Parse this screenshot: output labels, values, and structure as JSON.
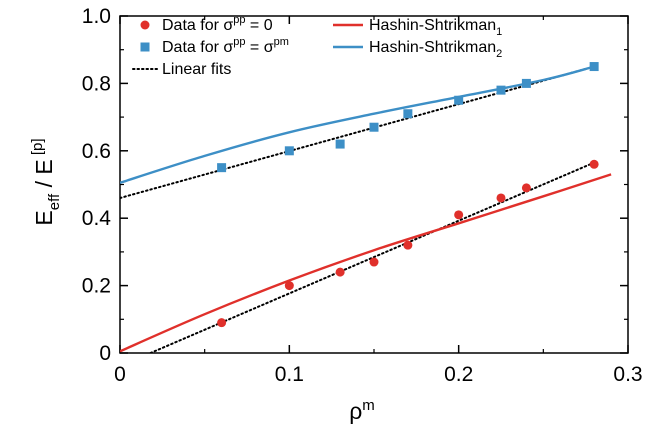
{
  "chart_data": {
    "type": "scatter",
    "title": "",
    "xlabel": "ρ^m",
    "ylabel": "E_eff / E^[p]",
    "xlim": [
      0,
      0.3
    ],
    "ylim": [
      0,
      1.0
    ],
    "xticks": [
      "0",
      "0.1",
      "0.2",
      "0.3"
    ],
    "yticks": [
      "0",
      "0.2",
      "0.4",
      "0.6",
      "0.8",
      "1.0"
    ],
    "grid": false,
    "legend_position": "top-left",
    "series": [
      {
        "name": "Data for σ^pp = 0",
        "kind": "points",
        "marker": "circle",
        "color": "#e0302b",
        "x": [
          0.06,
          0.1,
          0.13,
          0.15,
          0.17,
          0.2,
          0.225,
          0.24,
          0.28
        ],
        "y": [
          0.09,
          0.2,
          0.24,
          0.27,
          0.32,
          0.41,
          0.46,
          0.49,
          0.56
        ]
      },
      {
        "name": "Data for σ^pp = σ^pm",
        "kind": "points",
        "marker": "square",
        "color": "#3d8fc6",
        "x": [
          0.06,
          0.1,
          0.13,
          0.15,
          0.17,
          0.2,
          0.225,
          0.24,
          0.28
        ],
        "y": [
          0.55,
          0.6,
          0.62,
          0.67,
          0.71,
          0.75,
          0.78,
          0.8,
          0.85
        ]
      },
      {
        "name": "Linear fits",
        "kind": "dotted-lines",
        "color": "#000000",
        "lines": [
          {
            "x": [
              0.0,
              0.28
            ],
            "y": [
              0.46,
              0.85
            ]
          },
          {
            "x": [
              0.018,
              0.28
            ],
            "y": [
              0.0,
              0.565
            ]
          }
        ]
      },
      {
        "name": "Hashin-Shtrikman_1",
        "kind": "line",
        "color": "#e0302b",
        "x": [
          0.0,
          0.05,
          0.1,
          0.15,
          0.2,
          0.25,
          0.29
        ],
        "y": [
          0.005,
          0.115,
          0.215,
          0.305,
          0.385,
          0.465,
          0.53
        ]
      },
      {
        "name": "Hashin-Shtrikman_2",
        "kind": "line",
        "color": "#3d8fc6",
        "x": [
          0.0,
          0.05,
          0.1,
          0.15,
          0.2,
          0.25,
          0.28
        ],
        "y": [
          0.505,
          0.585,
          0.655,
          0.71,
          0.76,
          0.81,
          0.85
        ]
      }
    ],
    "legend": {
      "left": [
        {
          "label": "Data for σ",
          "sup": "pp",
          "rest": " = 0",
          "sup2": "",
          "symbol": "circle",
          "color": "#e0302b"
        },
        {
          "label": "Data for σ",
          "sup": "pp",
          "rest": " = σ",
          "sup2": "pm",
          "symbol": "square",
          "color": "#3d8fc6"
        },
        {
          "label": "Linear fits",
          "sup": "",
          "rest": "",
          "sup2": "",
          "symbol": "dotted",
          "color": "#000000"
        }
      ],
      "right": [
        {
          "label": "Hashin-Shtrikman",
          "sub": "1",
          "symbol": "line",
          "color": "#e0302b"
        },
        {
          "label": "Hashin-Shtrikman",
          "sub": "2",
          "symbol": "line",
          "color": "#3d8fc6"
        }
      ]
    },
    "axis_text": {
      "x_main": "ρ",
      "x_sup": "m",
      "y_main1": "E",
      "y_sub": "eff",
      "y_main2": " / E",
      "y_sup": " [p]"
    }
  }
}
